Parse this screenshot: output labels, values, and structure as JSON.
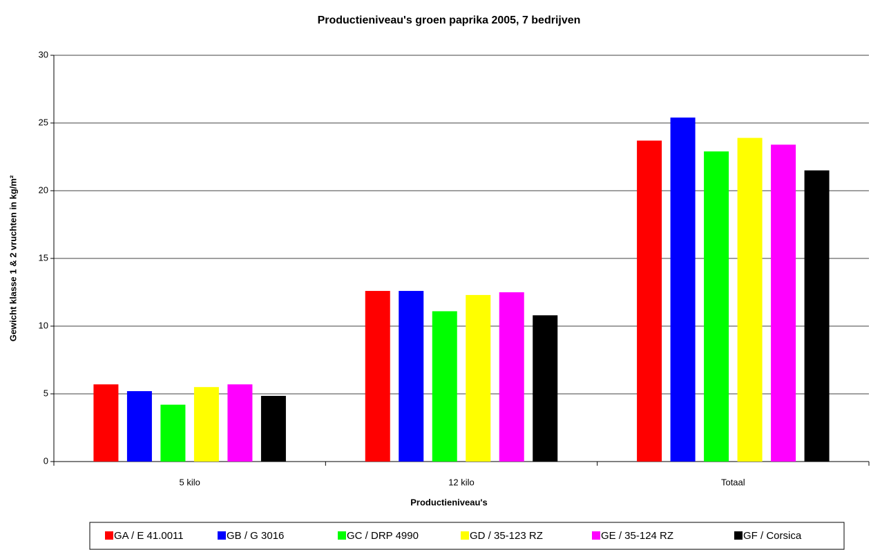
{
  "chart_data": {
    "type": "bar",
    "title": "Productieniveau's groen paprika 2005, 7 bedrijven",
    "x_label": "Productieniveau's",
    "y_label": "Gewicht klasse 1 & 2 vruchten in kg/m²",
    "categories": [
      "5 kilo",
      "12 kilo",
      "Totaal"
    ],
    "series": [
      {
        "name": "GA / E 41.0011",
        "color": "#ff0000",
        "values": [
          5.7,
          12.6,
          23.7
        ]
      },
      {
        "name": "GB / G 3016",
        "color": "#0000ff",
        "values": [
          5.2,
          12.6,
          25.4
        ]
      },
      {
        "name": "GC / DRP 4990",
        "color": "#00ff00",
        "values": [
          4.2,
          11.1,
          22.9
        ]
      },
      {
        "name": "GD / 35-123 RZ",
        "color": "#ffff00",
        "values": [
          5.5,
          12.3,
          23.9
        ]
      },
      {
        "name": "GE / 35-124 RZ",
        "color": "#ff00ff",
        "values": [
          5.7,
          12.5,
          23.4
        ]
      },
      {
        "name": "GF / Corsica",
        "color": "#000000",
        "values": [
          4.85,
          10.8,
          21.5
        ]
      }
    ],
    "ylim": [
      0,
      30
    ],
    "yticks": [
      0,
      5,
      10,
      15,
      20,
      25,
      30
    ],
    "grid": true,
    "legend": "bottom"
  }
}
